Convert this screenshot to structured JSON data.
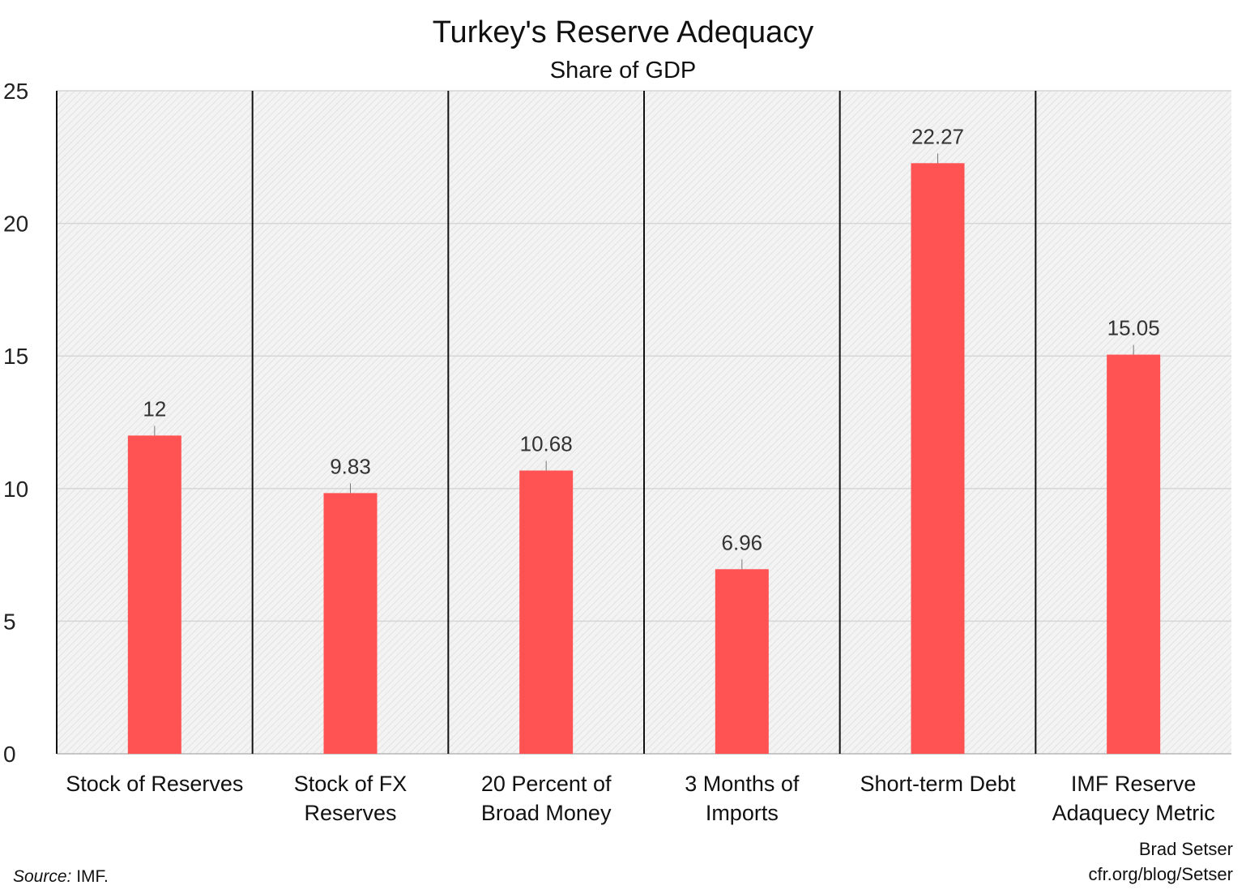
{
  "chart_data": {
    "type": "bar",
    "title": "Turkey's Reserve Adequacy",
    "subtitle": "Share of GDP",
    "categories": [
      [
        "Stock of Reserves"
      ],
      [
        "Stock of FX",
        "Reserves"
      ],
      [
        "20 Percent of",
        "Broad Money"
      ],
      [
        "3 Months of",
        "Imports"
      ],
      [
        "Short-term Debt"
      ],
      [
        "IMF Reserve",
        "Adaquecy Metric"
      ]
    ],
    "values": [
      12,
      9.83,
      10.68,
      6.96,
      22.27,
      15.05
    ],
    "data_labels": [
      "12",
      "9.83",
      "10.68",
      "6.96",
      "22.27",
      "15.05"
    ],
    "ylim": [
      0,
      25
    ],
    "yticks": [
      0,
      5,
      10,
      15,
      20,
      25
    ],
    "xlabel": "",
    "ylabel": "",
    "grid": true,
    "legend": "none",
    "colors": {
      "bar": "#ff5252",
      "plot_background": "#f2f2f2",
      "separator": "#111111",
      "gridline": "#d6d6d6"
    }
  },
  "footer": {
    "source_label": "Source:",
    "source_value": " IMF.",
    "credit_line1": "Brad Setser",
    "credit_line2": "cfr.org/blog/Setser"
  }
}
